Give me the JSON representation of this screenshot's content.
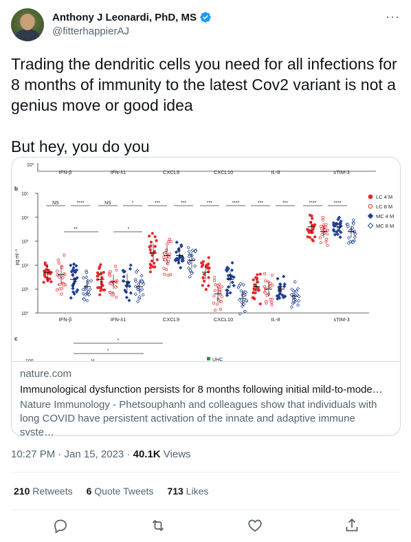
{
  "author": {
    "display_name": "Anthony J Leonardi, PhD, MS",
    "handle": "@fitterhappierAJ",
    "verified_icon": "verified-badge-icon",
    "more_icon": "more-dots-icon"
  },
  "tweet": {
    "text": "Trading the dendritic cells you need for all infections for 8 months of immunity to the latest Cov2 variant is not a genius move or good idea\n\nBut hey, you do you"
  },
  "card": {
    "figure": {
      "panel_b_label": "b",
      "panel_c_label": "c",
      "y_unit": "pg ml⁻¹",
      "top_axis_label": "10⁰",
      "top_categories": [
        "IFN-β",
        "IFN-λ1",
        "CXCL9",
        "CXCL10",
        "IL-8",
        "sTIM-3"
      ],
      "bottom_categories": [
        "IFN-β",
        "IFN-λ1",
        "CXCL9",
        "CXCL10",
        "IL-8",
        "sTIM-3"
      ],
      "y_ticks": [
        "10⁵",
        "10⁴",
        "10³",
        "10²",
        "10¹",
        "10⁰"
      ],
      "significance": [
        "NS",
        "****",
        "NS",
        "*",
        "***",
        "***",
        "***",
        "****",
        "***",
        "***",
        "****",
        "****"
      ],
      "lower_significance": [
        "**",
        "*"
      ],
      "legend": [
        {
          "label": "LC 4 M",
          "color": "#e8262b",
          "marker": "filled-circle"
        },
        {
          "label": "LC 8 M",
          "color": "#e8262b",
          "marker": "open-circle"
        },
        {
          "label": "MC 4 M",
          "color": "#1f3f9a",
          "marker": "filled-diamond"
        },
        {
          "label": "MC 8 M",
          "color": "#1f3f9a",
          "marker": "open-diamond"
        }
      ],
      "panel_c_snippet": {
        "y_tick": "100",
        "marks": [
          "*",
          "*",
          "**"
        ],
        "legend_text": "UHC"
      }
    },
    "domain": "nature.com",
    "title": "Immunological dysfunction persists for 8 months following initial mild-to-mode…",
    "description": "Nature Immunology - Phetsouphanh and colleagues show that individuals with long COVID have persistent activation of the innate and adaptive immune syste…"
  },
  "meta": {
    "time": "10:27 PM · Jan 15, 2023 · ",
    "views_count": "40.1K",
    "views_label": " Views"
  },
  "stats": {
    "retweets_count": "210",
    "retweets_label": " Retweets",
    "quotes_count": "6",
    "quotes_label": " Quote Tweets",
    "likes_count": "713",
    "likes_label": " Likes"
  },
  "actions": [
    "reply-icon",
    "retweet-icon",
    "like-icon",
    "share-icon"
  ]
}
